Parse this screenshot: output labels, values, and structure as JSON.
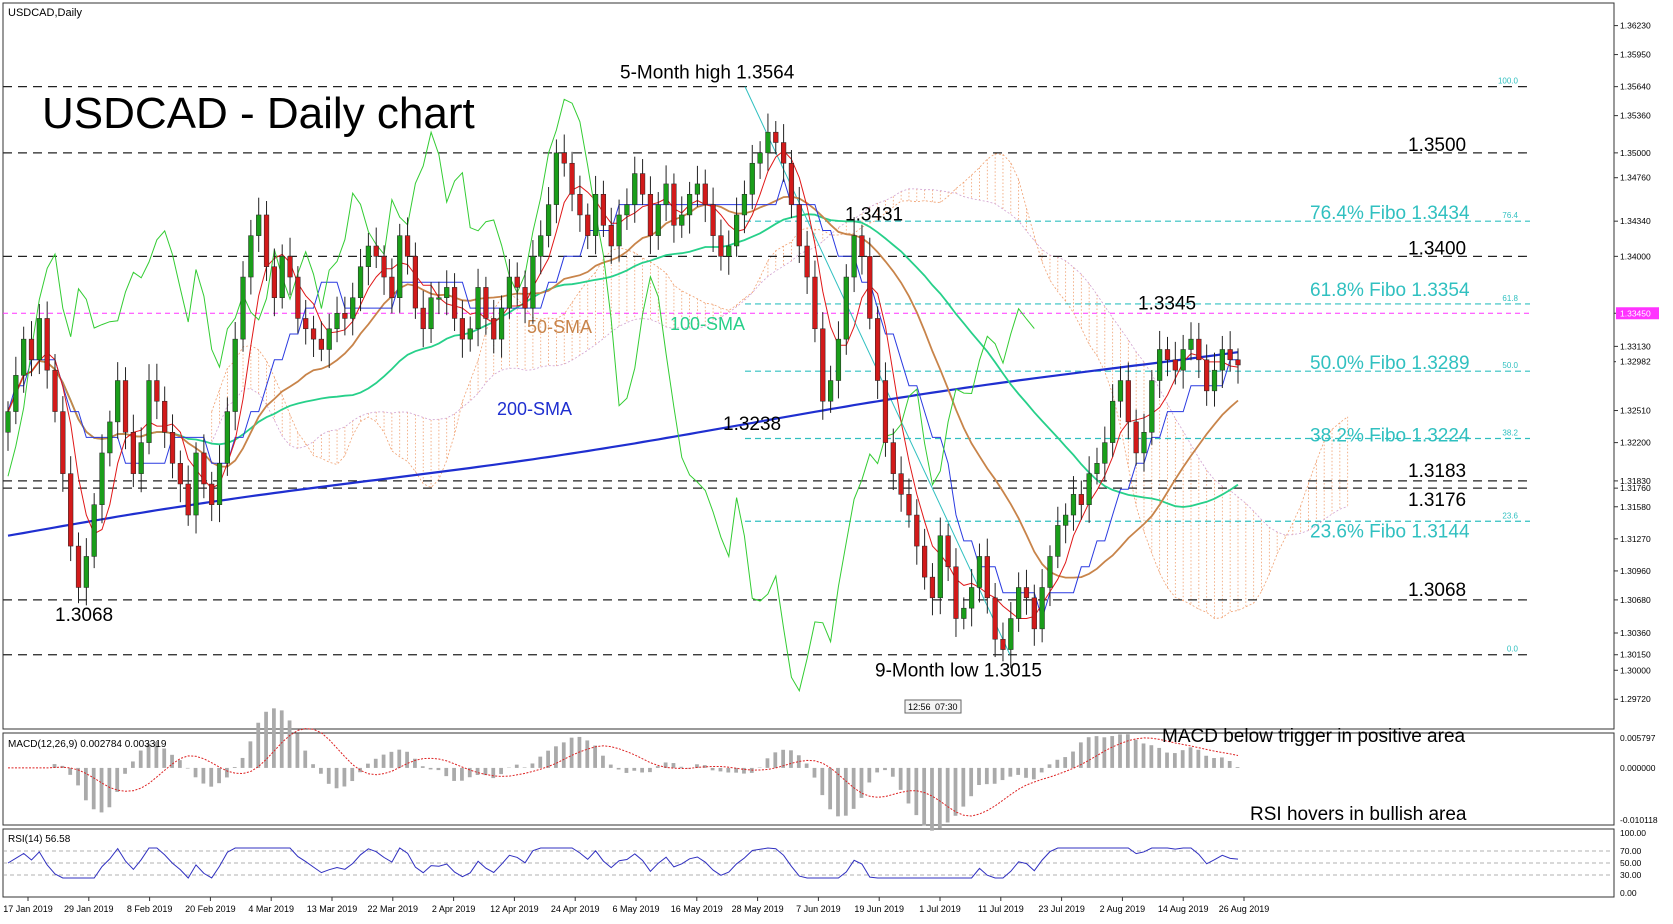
{
  "window": {
    "title": "USDCAD,Daily",
    "time_badge": [
      "12:56",
      "07:30"
    ]
  },
  "colors": {
    "candle_up": "#1a9e1a",
    "candle_down": "#d21a1a",
    "sma50": "#c8844a",
    "sma100": "#27d08a",
    "sma200": "#1f2fd0",
    "tenkan": "#e01818",
    "kijun": "#2a3ae0",
    "chikou": "#33cc33",
    "cloud": "#f0a070",
    "fib": "#30c0c0",
    "magenta": "#ff33ff",
    "macd_hist": "#aaaaaa",
    "macd_signal": "#dd2222",
    "rsi": "#3030c0"
  },
  "chart_data": [
    {
      "type": "candlestick",
      "title": "USDCAD - Daily chart",
      "symbol": "USDCAD",
      "timeframe": "Daily",
      "ylim": [
        1.295,
        1.364
      ],
      "y_ticks": [
        "1.36230",
        "1.35950",
        "1.35640",
        "1.35360",
        "1.35000",
        "1.34760",
        "1.34340",
        "1.34000",
        "1.33450",
        "1.33130",
        "1.32982",
        "1.32510",
        "1.32200",
        "1.31830",
        "1.31760",
        "1.31580",
        "1.31270",
        "1.30960",
        "1.30680",
        "1.30360",
        "1.30150",
        "1.30000",
        "1.29720"
      ],
      "x_ticks": [
        "17 Jan 2019",
        "29 Jan 2019",
        "8 Feb 2019",
        "20 Feb 2019",
        "4 Mar 2019",
        "13 Mar 2019",
        "22 Mar 2019",
        "2 Apr 2019",
        "12 Apr 2019",
        "24 Apr 2019",
        "6 May 2019",
        "16 May 2019",
        "28 May 2019",
        "7 Jun 2019",
        "19 Jun 2019",
        "1 Jul 2019",
        "11 Jul 2019",
        "23 Jul 2019",
        "2 Aug 2019",
        "14 Aug 2019",
        "26 Aug 2019"
      ],
      "close_series": [
        1.325,
        1.3285,
        1.332,
        1.33,
        1.334,
        1.329,
        1.325,
        1.319,
        1.312,
        1.308,
        1.311,
        1.316,
        1.321,
        1.324,
        1.328,
        1.323,
        1.319,
        1.322,
        1.328,
        1.326,
        1.323,
        1.32,
        1.318,
        1.315,
        1.321,
        1.318,
        1.316,
        1.32,
        1.325,
        1.332,
        1.338,
        1.342,
        1.344,
        1.339,
        1.336,
        1.34,
        1.338,
        1.334,
        1.333,
        1.332,
        1.331,
        1.333,
        1.3345,
        1.334,
        1.336,
        1.339,
        1.341,
        1.34,
        1.338,
        1.336,
        1.342,
        1.34,
        1.335,
        1.333,
        1.336,
        1.336,
        1.337,
        1.334,
        1.332,
        1.333,
        1.337,
        1.334,
        1.332,
        1.335,
        1.338,
        1.337,
        1.335,
        1.34,
        1.342,
        1.345,
        1.35,
        1.349,
        1.346,
        1.344,
        1.342,
        1.346,
        1.343,
        1.341,
        1.344,
        1.345,
        1.348,
        1.346,
        1.342,
        1.345,
        1.347,
        1.343,
        1.344,
        1.346,
        1.347,
        1.345,
        1.342,
        1.34,
        1.341,
        1.344,
        1.346,
        1.349,
        1.35,
        1.352,
        1.351,
        1.349,
        1.345,
        1.341,
        1.338,
        1.333,
        1.326,
        1.328,
        1.332,
        1.338,
        1.342,
        1.34,
        1.334,
        1.328,
        1.322,
        1.319,
        1.317,
        1.315,
        1.312,
        1.309,
        1.307,
        1.313,
        1.31,
        1.305,
        1.306,
        1.308,
        1.311,
        1.307,
        1.303,
        1.302,
        1.305,
        1.308,
        1.307,
        1.304,
        1.308,
        1.311,
        1.314,
        1.315,
        1.317,
        1.316,
        1.319,
        1.32,
        1.322,
        1.326,
        1.328,
        1.324,
        1.321,
        1.323,
        1.328,
        1.331,
        1.33,
        1.329,
        1.331,
        1.332,
        1.33,
        1.327,
        1.329,
        1.331,
        1.33,
        1.3295
      ],
      "levels": [
        {
          "label": "5-Month high 1.3564",
          "value": 1.3564
        },
        {
          "label": "1.3500",
          "value": 1.35
        },
        {
          "label": "76.4% Fibo 1.3434",
          "value": 1.3434,
          "fib": true
        },
        {
          "label": "1.3400",
          "value": 1.34
        },
        {
          "label": "61.8% Fibo 1.3354",
          "value": 1.3354,
          "fib": true
        },
        {
          "label": "50.0% Fibo 1.3289",
          "value": 1.3289,
          "fib": true
        },
        {
          "label": "38.2% Fibo 1.3224",
          "value": 1.3224,
          "fib": true
        },
        {
          "label": "1.3183",
          "value": 1.3183
        },
        {
          "label": "1.3176",
          "value": 1.3176
        },
        {
          "label": "23.6% Fibo 1.3144",
          "value": 1.3144,
          "fib": true
        },
        {
          "label": "1.3068",
          "value": 1.3068
        },
        {
          "label": "9-Month low 1.3015",
          "value": 1.3015
        }
      ],
      "annotations": [
        {
          "text": "5-Month high 1.3564"
        },
        {
          "text": "1.3431"
        },
        {
          "text": "1.3345"
        },
        {
          "text": "1.3238"
        },
        {
          "text": "1.3068"
        },
        {
          "text": "9-Month low 1.3015"
        },
        {
          "text": "50-SMA",
          "series": "sma50"
        },
        {
          "text": "100-SMA",
          "series": "sma100"
        },
        {
          "text": "200-SMA",
          "series": "sma200"
        }
      ],
      "fib_small_labels": [
        "100.0",
        "76.4",
        "61.8",
        "50.0",
        "38.2",
        "23.6",
        "0.0"
      ],
      "current_price": "1.32982",
      "highlight_level": "1.33450"
    },
    {
      "type": "bar",
      "title": "MACD(12,26,9) 0.002784 0.003319",
      "annotation": "MACD below trigger in positive area",
      "y_ticks": [
        "0.005797",
        "0.000000",
        "-0.010118"
      ],
      "ylim": [
        -0.0101,
        0.0058
      ]
    },
    {
      "type": "line",
      "title": "RSI(14) 56.58",
      "annotation": "RSI hovers in bullish area",
      "y_ticks": [
        "100.00",
        "70.00",
        "50.00",
        "30.00",
        "0.00"
      ],
      "ylim": [
        0,
        100
      ],
      "last_value": 56.58
    }
  ]
}
